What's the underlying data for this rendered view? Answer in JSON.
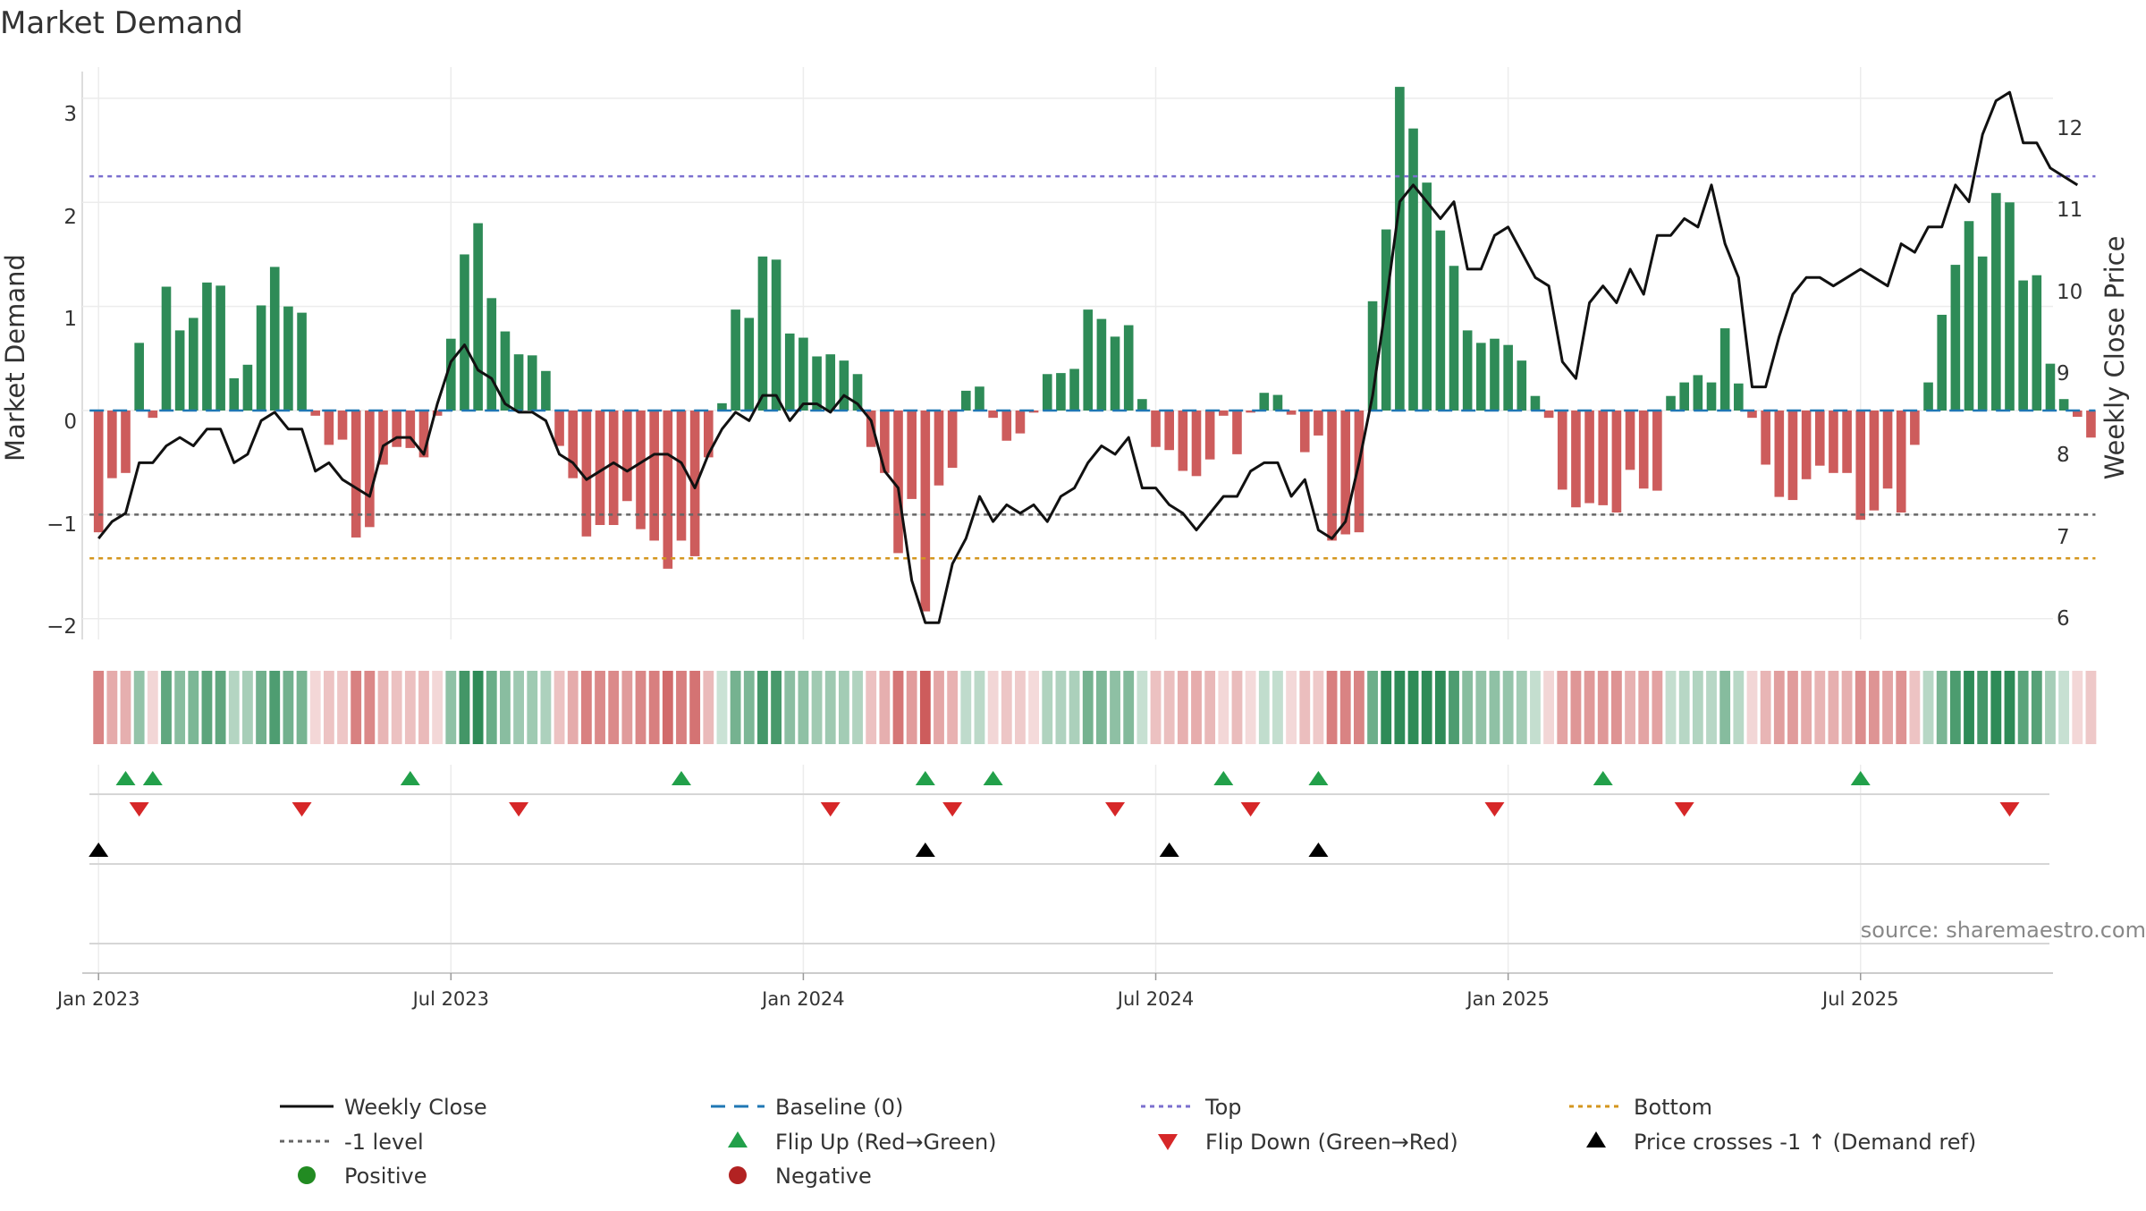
{
  "chart_data": {
    "type": "bar",
    "title": "Market Demand",
    "ylabel": "Market Demand",
    "y2label": "Weekly Close Price",
    "ylim": [
      -2.2,
      3.3
    ],
    "y2lim": [
      5.8,
      12.6
    ],
    "yticks": [
      3,
      2,
      1,
      0,
      -1,
      -2
    ],
    "yticks_labels": [
      "3",
      "2",
      "1",
      "0",
      "−1",
      "−2"
    ],
    "y2ticks": [
      12,
      11,
      10,
      9,
      8,
      7,
      6
    ],
    "y2ticks_labels": [
      "12",
      "11",
      "10",
      "9",
      "8",
      "7",
      "6"
    ],
    "x_range_weeks": [
      -1.2,
      144.2
    ],
    "xticks": [
      {
        "week": 0,
        "label": "Jan 2023"
      },
      {
        "week": 26,
        "label": "Jul 2023"
      },
      {
        "week": 52,
        "label": "Jan 2024"
      },
      {
        "week": 78,
        "label": "Jul 2024"
      },
      {
        "week": 104,
        "label": "Jan 2025"
      },
      {
        "week": 130,
        "label": "Jul 2025"
      }
    ],
    "reference_lines": {
      "top": 2.25,
      "bottom": -1.42,
      "minus_one": -1.0,
      "baseline": 0
    },
    "demand": [
      -1.17,
      -0.65,
      -0.6,
      0.65,
      -0.07,
      1.19,
      0.77,
      0.89,
      1.23,
      1.2,
      0.31,
      0.44,
      1.01,
      1.38,
      1.0,
      0.94,
      -0.05,
      -0.33,
      -0.28,
      -1.22,
      -1.12,
      -0.52,
      -0.35,
      -0.36,
      -0.45,
      -0.05,
      0.69,
      1.5,
      1.8,
      1.08,
      0.76,
      0.54,
      0.53,
      0.38,
      -0.34,
      -0.65,
      -1.21,
      -1.1,
      -1.1,
      -0.87,
      -1.14,
      -1.25,
      -1.52,
      -1.25,
      -1.4,
      -0.45,
      0.07,
      0.97,
      0.89,
      1.48,
      1.45,
      0.74,
      0.7,
      0.52,
      0.54,
      0.48,
      0.35,
      -0.35,
      -0.6,
      -1.37,
      -0.85,
      -1.93,
      -0.72,
      -0.55,
      0.19,
      0.23,
      -0.07,
      -0.29,
      -0.22,
      -0.02,
      0.35,
      0.36,
      0.4,
      0.97,
      0.88,
      0.71,
      0.82,
      0.11,
      -0.35,
      -0.38,
      -0.58,
      -0.63,
      -0.47,
      -0.05,
      -0.42,
      -0.02,
      0.17,
      0.15,
      -0.04,
      -0.4,
      -0.24,
      -1.25,
      -1.19,
      -1.17,
      1.05,
      1.74,
      3.11,
      2.71,
      2.19,
      1.73,
      1.39,
      0.77,
      0.65,
      0.69,
      0.63,
      0.48,
      0.14,
      -0.07,
      -0.76,
      -0.93,
      -0.89,
      -0.91,
      -0.98,
      -0.57,
      -0.75,
      -0.77,
      0.14,
      0.27,
      0.34,
      0.27,
      0.79,
      0.26,
      -0.07,
      -0.52,
      -0.83,
      -0.86,
      -0.66,
      -0.53,
      -0.6,
      -0.6,
      -1.05,
      -0.96,
      -0.75,
      -0.98,
      -0.33,
      0.27,
      0.92,
      1.4,
      1.82,
      1.48,
      2.09,
      2.0,
      1.25,
      1.3,
      0.45,
      0.11,
      -0.06,
      -0.26
    ],
    "weekly_close": [
      7.0,
      7.2,
      7.3,
      7.9,
      7.9,
      8.1,
      8.2,
      8.1,
      8.3,
      8.3,
      7.9,
      8.0,
      8.4,
      8.5,
      8.3,
      8.3,
      7.8,
      7.9,
      7.7,
      7.6,
      7.5,
      8.1,
      8.2,
      8.2,
      8.0,
      8.6,
      9.1,
      9.3,
      9.0,
      8.9,
      8.6,
      8.5,
      8.5,
      8.4,
      8.0,
      7.9,
      7.7,
      7.8,
      7.9,
      7.8,
      7.9,
      8.0,
      8.0,
      7.9,
      7.6,
      8.0,
      8.3,
      8.5,
      8.4,
      8.7,
      8.7,
      8.4,
      8.6,
      8.6,
      8.5,
      8.7,
      8.6,
      8.4,
      7.8,
      7.6,
      6.5,
      6.0,
      6.0,
      6.7,
      7.0,
      7.5,
      7.2,
      7.4,
      7.3,
      7.4,
      7.2,
      7.5,
      7.6,
      7.9,
      8.1,
      8.0,
      8.2,
      7.6,
      7.6,
      7.4,
      7.3,
      7.1,
      7.3,
      7.5,
      7.5,
      7.8,
      7.9,
      7.9,
      7.5,
      7.7,
      7.1,
      7.0,
      7.2,
      7.9,
      8.7,
      9.8,
      11.0,
      11.2,
      11.0,
      10.8,
      11.0,
      10.2,
      10.2,
      10.6,
      10.7,
      10.4,
      10.1,
      10.0,
      9.1,
      8.9,
      9.8,
      10.0,
      9.8,
      10.2,
      9.9,
      10.6,
      10.6,
      10.8,
      10.7,
      11.2,
      10.5,
      10.1,
      8.8,
      8.8,
      9.4,
      9.9,
      10.1,
      10.1,
      10.0,
      10.1,
      10.2,
      10.1,
      10.0,
      10.5,
      10.4,
      10.7,
      10.7,
      11.2,
      11.0,
      11.8,
      12.2,
      12.3,
      11.7,
      11.7,
      11.4,
      11.3,
      11.2
    ],
    "flip_up_weeks": [
      2,
      4,
      23,
      43,
      61,
      66,
      83,
      90,
      111,
      130
    ],
    "flip_down_weeks": [
      3,
      15,
      31,
      54,
      63,
      75,
      85,
      103,
      117,
      141
    ],
    "price_cross_weeks": [
      0,
      61,
      79,
      90
    ],
    "colors": {
      "positive": "#2e8b57",
      "negative": "#cd5c5c",
      "weekly_close": "#111111",
      "baseline": "#1f77b4",
      "top": "#7b6fcf",
      "bottom": "#d4961e",
      "minus_one": "#666666",
      "flip_up": "#22a04a",
      "flip_down": "#d62728",
      "price_cross": "#000000",
      "legend_positive": "#228b22",
      "legend_negative": "#b22222"
    }
  },
  "source": "source: sharemaestro.com",
  "legend": {
    "weekly_close": "Weekly Close",
    "baseline": "Baseline (0)",
    "top": "Top",
    "bottom": "Bottom",
    "minus_one": "-1 level",
    "flip_up": "Flip Up (Red→Green)",
    "flip_down": "Flip Down (Green→Red)",
    "price_cross": "Price crosses -1 ↑ (Demand ref)",
    "positive": "Positive",
    "negative": "Negative"
  }
}
